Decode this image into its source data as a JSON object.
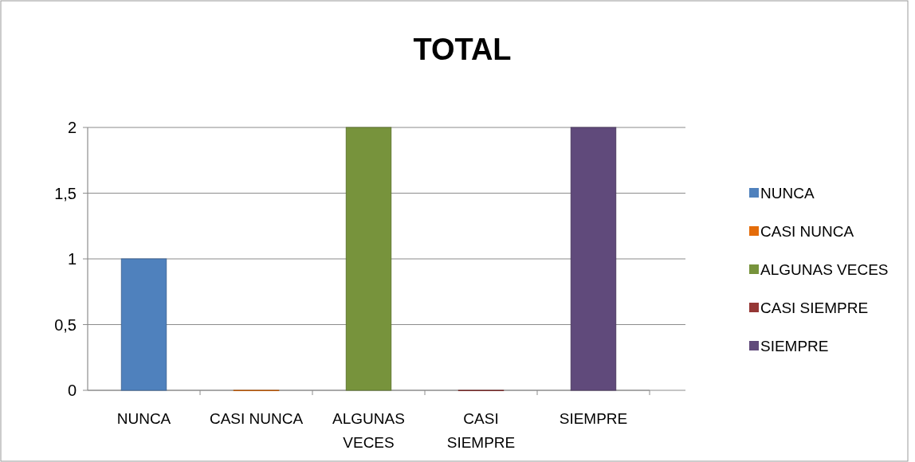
{
  "chart_data": {
    "type": "bar",
    "title": "TOTAL",
    "categories": [
      "NUNCA",
      "CASI NUNCA",
      "ALGUNAS VECES",
      "CASI SIEMPRE",
      "SIEMPRE"
    ],
    "series": [
      {
        "name": "NUNCA",
        "color": "#4f81bd",
        "values": [
          1,
          null,
          null,
          null,
          null
        ]
      },
      {
        "name": "CASI NUNCA",
        "color": "#e46c0a",
        "values": [
          null,
          0,
          null,
          null,
          null
        ]
      },
      {
        "name": "ALGUNAS VECES",
        "color": "#77933c",
        "values": [
          null,
          null,
          2,
          null,
          null
        ]
      },
      {
        "name": "CASI SIEMPRE",
        "color": "#953735",
        "values": [
          null,
          null,
          null,
          0,
          null
        ]
      },
      {
        "name": "SIEMPRE",
        "color": "#604a7b",
        "values": [
          null,
          null,
          null,
          null,
          2
        ]
      }
    ],
    "ylim": [
      0,
      2
    ],
    "yticks": [
      0,
      {
        "value": 0.5,
        "label": "0,5"
      },
      1,
      {
        "value": 1.5,
        "label": "1,5"
      },
      2
    ],
    "grid": "y",
    "legend": "right"
  }
}
